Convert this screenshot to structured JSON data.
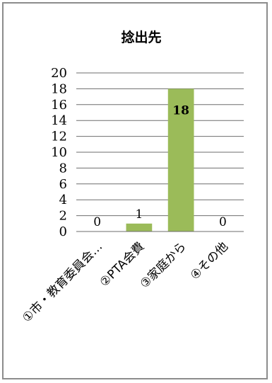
{
  "chart_data": {
    "type": "bar",
    "title": "捻出先",
    "categories": [
      "①市・教育委員会…",
      "②PTA会費",
      "③家庭から",
      "④その他"
    ],
    "values": [
      0,
      1,
      18,
      0
    ],
    "data_labels": [
      "0",
      "1",
      "18",
      "0"
    ],
    "ylim": [
      0,
      20
    ],
    "yticks": [
      0,
      2,
      4,
      6,
      8,
      10,
      12,
      14,
      16,
      18,
      20
    ],
    "grid": true,
    "legend": "none",
    "bar_color": "#9bbb59"
  }
}
